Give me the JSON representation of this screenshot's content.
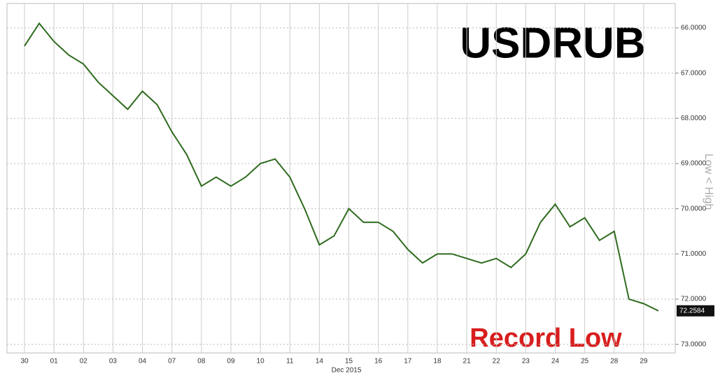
{
  "chart_data": {
    "type": "line",
    "title": "USDRUB",
    "annotation": "Record Low",
    "x_label": "Dec 2015",
    "side_label": "Low < High",
    "categories": [
      "30",
      null,
      "01",
      null,
      "02",
      null,
      "03",
      null,
      "04",
      null,
      "07",
      null,
      "08",
      null,
      "09",
      null,
      "10",
      null,
      "11",
      null,
      "14",
      null,
      "15",
      null,
      "16",
      null,
      "17",
      null,
      "18",
      null,
      "21",
      null,
      "22",
      null,
      "23",
      null,
      "24",
      null,
      "25",
      null,
      "28",
      null,
      "29",
      null
    ],
    "series": [
      {
        "name": "USDRUB",
        "color": "#2f6b1f",
        "values": [
          66.4,
          65.9,
          66.3,
          66.6,
          66.8,
          67.2,
          67.5,
          67.8,
          67.4,
          67.7,
          68.3,
          68.8,
          69.5,
          69.3,
          69.5,
          69.3,
          69.0,
          68.9,
          69.3,
          70.0,
          70.8,
          70.6,
          70.0,
          70.3,
          70.3,
          70.5,
          70.9,
          71.2,
          71.0,
          71.0,
          71.1,
          71.2,
          71.1,
          71.3,
          71.0,
          70.3,
          69.9,
          70.4,
          70.2,
          70.7,
          70.5,
          72.0,
          72.1,
          72.2584
        ]
      }
    ],
    "last_price": 72.2584,
    "ylim": [
      65.46,
      73.19
    ],
    "y_inverted": true,
    "yticks": [
      {
        "value": 66,
        "label": "66.0000"
      },
      {
        "value": 67,
        "label": "67.0000"
      },
      {
        "value": 68,
        "label": "68.0000"
      },
      {
        "value": 69,
        "label": "69.0000"
      },
      {
        "value": 70,
        "label": "70.0000"
      },
      {
        "value": 71,
        "label": "71.0000"
      },
      {
        "value": 72,
        "label": "72.0000"
      },
      {
        "value": 73,
        "label": "73.0000"
      }
    ],
    "grid": true
  }
}
